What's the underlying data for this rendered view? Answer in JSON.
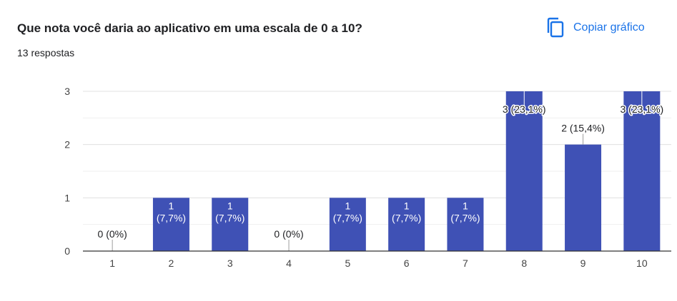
{
  "header": {
    "question": "Que nota você daria ao aplicativo em uma escala de 0 a 10?",
    "responses": "13 respostas",
    "copy_label": "Copiar gráfico",
    "copy_icon": "copy-icon"
  },
  "colors": {
    "accent": "#1a73e8",
    "bar": "#3f51b5",
    "grid": "#e8e8e8",
    "text": "#202124"
  },
  "chart_data": {
    "type": "bar",
    "categories": [
      "1",
      "2",
      "3",
      "4",
      "5",
      "6",
      "7",
      "8",
      "9",
      "10"
    ],
    "values": [
      0,
      1,
      1,
      0,
      1,
      1,
      1,
      3,
      2,
      3
    ],
    "data_labels": [
      [
        "0 (0%)"
      ],
      [
        "1",
        "(7,7%)"
      ],
      [
        "1",
        "(7,7%)"
      ],
      [
        "0 (0%)"
      ],
      [
        "1",
        "(7,7%)"
      ],
      [
        "1",
        "(7,7%)"
      ],
      [
        "1",
        "(7,7%)"
      ],
      [
        "3 (23,1%)"
      ],
      [
        "2 (15,4%)"
      ],
      [
        "3 (23,1%)"
      ]
    ],
    "ylim": [
      0,
      3
    ],
    "yticks": [
      0,
      1,
      2,
      3
    ],
    "grid": true,
    "title": "",
    "xlabel": "",
    "ylabel": ""
  }
}
